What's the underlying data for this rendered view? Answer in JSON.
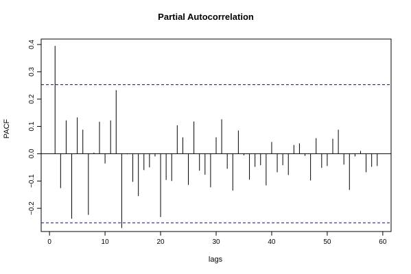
{
  "chart_data": {
    "type": "bar",
    "title": "Partial Autocorrelation",
    "xlabel": "lags",
    "ylabel": "PACF",
    "xlim": [
      -1.5,
      61.5
    ],
    "ylim": [
      -0.285,
      0.42
    ],
    "xticks": [
      0,
      10,
      20,
      30,
      40,
      50,
      60
    ],
    "xtick_labels": [
      "0",
      "10",
      "20",
      "30",
      "40",
      "50",
      "60"
    ],
    "yticks": [
      -0.2,
      -0.1,
      0.0,
      0.1,
      0.2,
      0.3,
      0.4
    ],
    "ytick_labels": [
      "−0.2",
      "−0.1",
      "0.0",
      "0.1",
      "0.2",
      "0.3",
      "0.4"
    ],
    "confidence_bound": 0.253,
    "grid": false,
    "colors": {
      "bars": "#000000",
      "confidence_lines": "#0000cc",
      "zero_line": "#000000"
    },
    "lags": [
      1,
      2,
      3,
      4,
      5,
      6,
      7,
      8,
      9,
      10,
      11,
      12,
      13,
      14,
      15,
      16,
      17,
      18,
      19,
      20,
      21,
      22,
      23,
      24,
      25,
      26,
      27,
      28,
      29,
      30,
      31,
      32,
      33,
      34,
      35,
      36,
      37,
      38,
      39,
      40,
      41,
      42,
      43,
      44,
      45,
      46,
      47,
      48,
      49,
      50,
      51,
      52,
      53,
      54,
      55,
      56,
      57,
      58,
      59
    ],
    "values": [
      0.395,
      -0.126,
      0.122,
      -0.238,
      0.133,
      0.088,
      -0.224,
      0.004,
      0.117,
      -0.036,
      0.122,
      0.233,
      -0.272,
      -0.002,
      -0.103,
      -0.155,
      -0.06,
      -0.05,
      -0.01,
      -0.232,
      -0.096,
      -0.1,
      0.104,
      0.06,
      -0.114,
      0.118,
      -0.062,
      -0.077,
      -0.123,
      0.06,
      0.126,
      -0.055,
      -0.135,
      0.085,
      -0.006,
      -0.095,
      -0.048,
      -0.042,
      -0.116,
      0.043,
      -0.068,
      -0.042,
      -0.078,
      0.032,
      0.038,
      -0.008,
      -0.098,
      0.057,
      -0.052,
      -0.045,
      0.055,
      0.088,
      -0.04,
      -0.133,
      -0.01,
      0.01,
      -0.068,
      -0.048,
      -0.045
    ]
  }
}
